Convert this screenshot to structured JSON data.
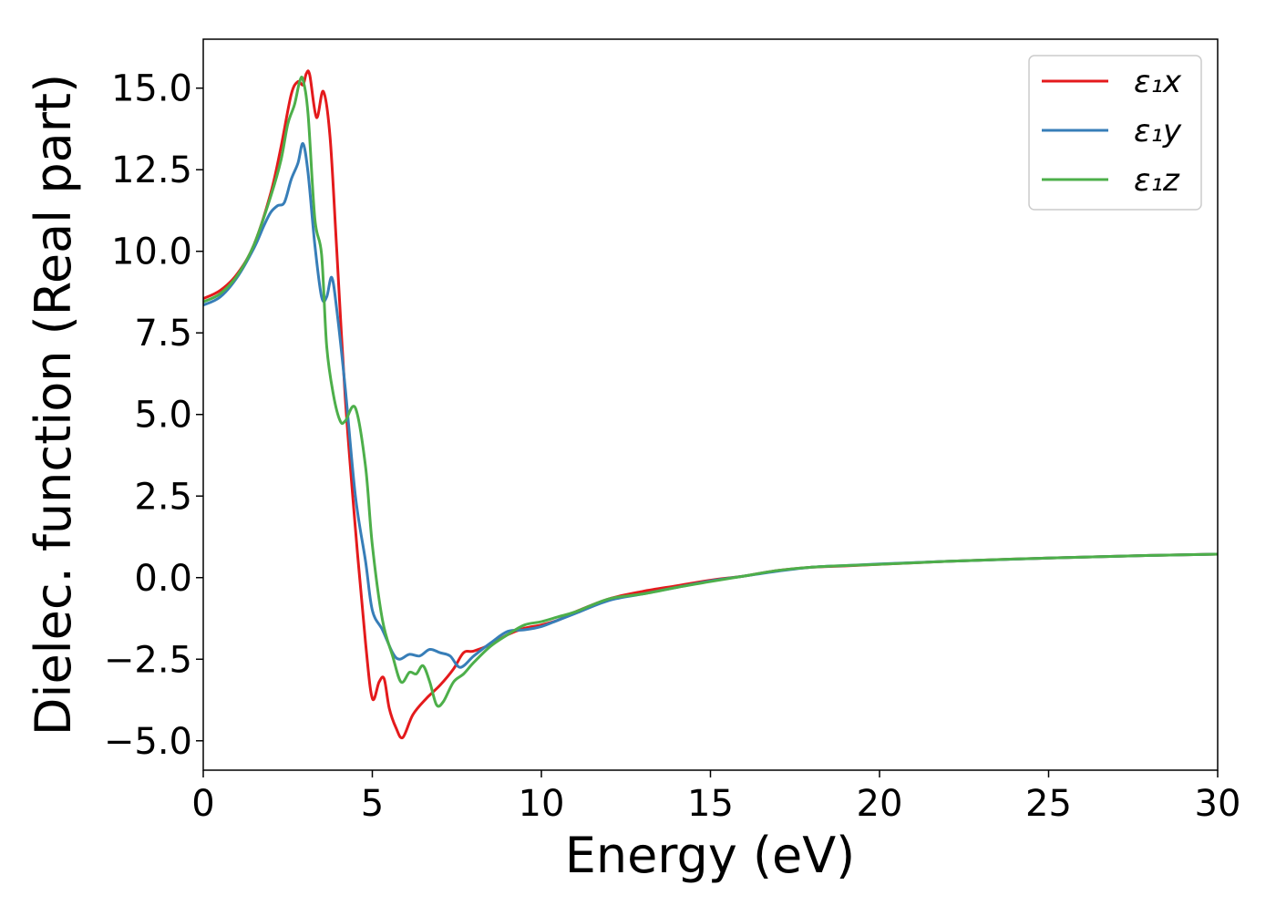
{
  "chart_data": {
    "type": "line",
    "xlabel": "Energy (eV)",
    "ylabel": "Dielec. function (Real part)",
    "xlim": [
      0,
      30
    ],
    "ylim": [
      -5.9,
      16.5
    ],
    "xticks": [
      0,
      5,
      10,
      15,
      20,
      25,
      30
    ],
    "xtick_labels": [
      "0",
      "5",
      "10",
      "15",
      "20",
      "25",
      "30"
    ],
    "yticks": [
      -5.0,
      -2.5,
      0.0,
      2.5,
      5.0,
      7.5,
      10.0,
      12.5,
      15.0
    ],
    "ytick_labels": [
      "−5.0",
      "−2.5",
      "0.0",
      "2.5",
      "5.0",
      "7.5",
      "10.0",
      "12.5",
      "15.0"
    ],
    "grid": false,
    "legend_position": "top-right",
    "series": [
      {
        "name": "ε₁x",
        "color": "#e41a1c",
        "x": [
          0,
          0.5,
          1.0,
          1.5,
          2.0,
          2.3,
          2.6,
          2.8,
          2.95,
          3.05,
          3.15,
          3.35,
          3.55,
          3.75,
          3.95,
          4.2,
          4.5,
          4.8,
          5.0,
          5.2,
          5.35,
          5.5,
          5.7,
          5.9,
          6.2,
          6.6,
          7.0,
          7.4,
          7.7,
          8.0,
          8.5,
          9.0,
          9.5,
          10.0,
          10.5,
          11.0,
          12.0,
          13.0,
          14.0,
          15.0,
          16.0,
          17.0,
          18.0,
          19.0,
          20.0,
          22.0,
          25.0,
          28.0,
          30.0
        ],
        "y": [
          8.55,
          8.8,
          9.3,
          10.2,
          11.8,
          13.2,
          14.8,
          15.2,
          15.1,
          15.45,
          15.4,
          14.1,
          14.9,
          13.5,
          10.0,
          5.5,
          1.5,
          -2.0,
          -3.7,
          -3.2,
          -3.1,
          -4.0,
          -4.6,
          -4.9,
          -4.2,
          -3.7,
          -3.3,
          -2.8,
          -2.3,
          -2.25,
          -2.05,
          -1.75,
          -1.55,
          -1.45,
          -1.3,
          -1.05,
          -0.65,
          -0.42,
          -0.25,
          -0.08,
          0.05,
          0.22,
          0.32,
          0.36,
          0.41,
          0.5,
          0.6,
          0.68,
          0.72
        ]
      },
      {
        "name": "ε₁y",
        "color": "#377eb8",
        "x": [
          0,
          0.5,
          1.0,
          1.5,
          1.8,
          2.0,
          2.2,
          2.4,
          2.6,
          2.8,
          2.95,
          3.1,
          3.3,
          3.5,
          3.65,
          3.8,
          3.95,
          4.2,
          4.5,
          4.8,
          5.0,
          5.3,
          5.6,
          5.8,
          6.1,
          6.4,
          6.7,
          7.0,
          7.3,
          7.6,
          8.0,
          8.5,
          9.0,
          9.5,
          10.0,
          10.5,
          11.0,
          12.0,
          13.0,
          14.0,
          15.0,
          16.0,
          17.0,
          18.0,
          19.0,
          20.0,
          22.0,
          25.0,
          28.0,
          30.0
        ],
        "y": [
          8.35,
          8.6,
          9.2,
          10.1,
          10.8,
          11.2,
          11.4,
          11.5,
          12.2,
          12.7,
          13.3,
          12.4,
          10.2,
          8.6,
          8.6,
          9.2,
          8.2,
          5.8,
          2.5,
          0.5,
          -1.0,
          -1.6,
          -2.3,
          -2.5,
          -2.35,
          -2.4,
          -2.2,
          -2.3,
          -2.4,
          -2.75,
          -2.4,
          -2.0,
          -1.65,
          -1.6,
          -1.5,
          -1.3,
          -1.1,
          -0.7,
          -0.5,
          -0.3,
          -0.1,
          0.05,
          0.2,
          0.32,
          0.37,
          0.42,
          0.5,
          0.6,
          0.68,
          0.72
        ]
      },
      {
        "name": "ε₁z",
        "color": "#4daf4a",
        "x": [
          0,
          0.5,
          1.0,
          1.5,
          2.0,
          2.3,
          2.5,
          2.7,
          2.85,
          2.95,
          3.1,
          3.3,
          3.5,
          3.65,
          3.85,
          4.05,
          4.2,
          4.5,
          4.8,
          5.0,
          5.3,
          5.6,
          5.85,
          6.1,
          6.3,
          6.5,
          6.7,
          6.9,
          7.1,
          7.4,
          7.7,
          8.0,
          8.5,
          9.0,
          9.5,
          10.0,
          10.5,
          11.0,
          12.0,
          13.0,
          14.0,
          15.0,
          16.0,
          17.0,
          18.0,
          19.0,
          20.0,
          22.0,
          25.0,
          28.0,
          30.0
        ],
        "y": [
          8.45,
          8.7,
          9.25,
          10.2,
          11.7,
          12.8,
          13.9,
          14.5,
          15.2,
          15.25,
          14.2,
          11.0,
          9.9,
          7.1,
          5.6,
          4.8,
          4.8,
          5.2,
          3.4,
          1.0,
          -1.3,
          -2.4,
          -3.2,
          -2.9,
          -2.95,
          -2.7,
          -3.2,
          -3.9,
          -3.8,
          -3.2,
          -2.95,
          -2.6,
          -2.1,
          -1.75,
          -1.45,
          -1.35,
          -1.2,
          -1.05,
          -0.65,
          -0.5,
          -0.3,
          -0.12,
          0.05,
          0.22,
          0.32,
          0.37,
          0.41,
          0.5,
          0.6,
          0.68,
          0.72
        ]
      }
    ]
  }
}
